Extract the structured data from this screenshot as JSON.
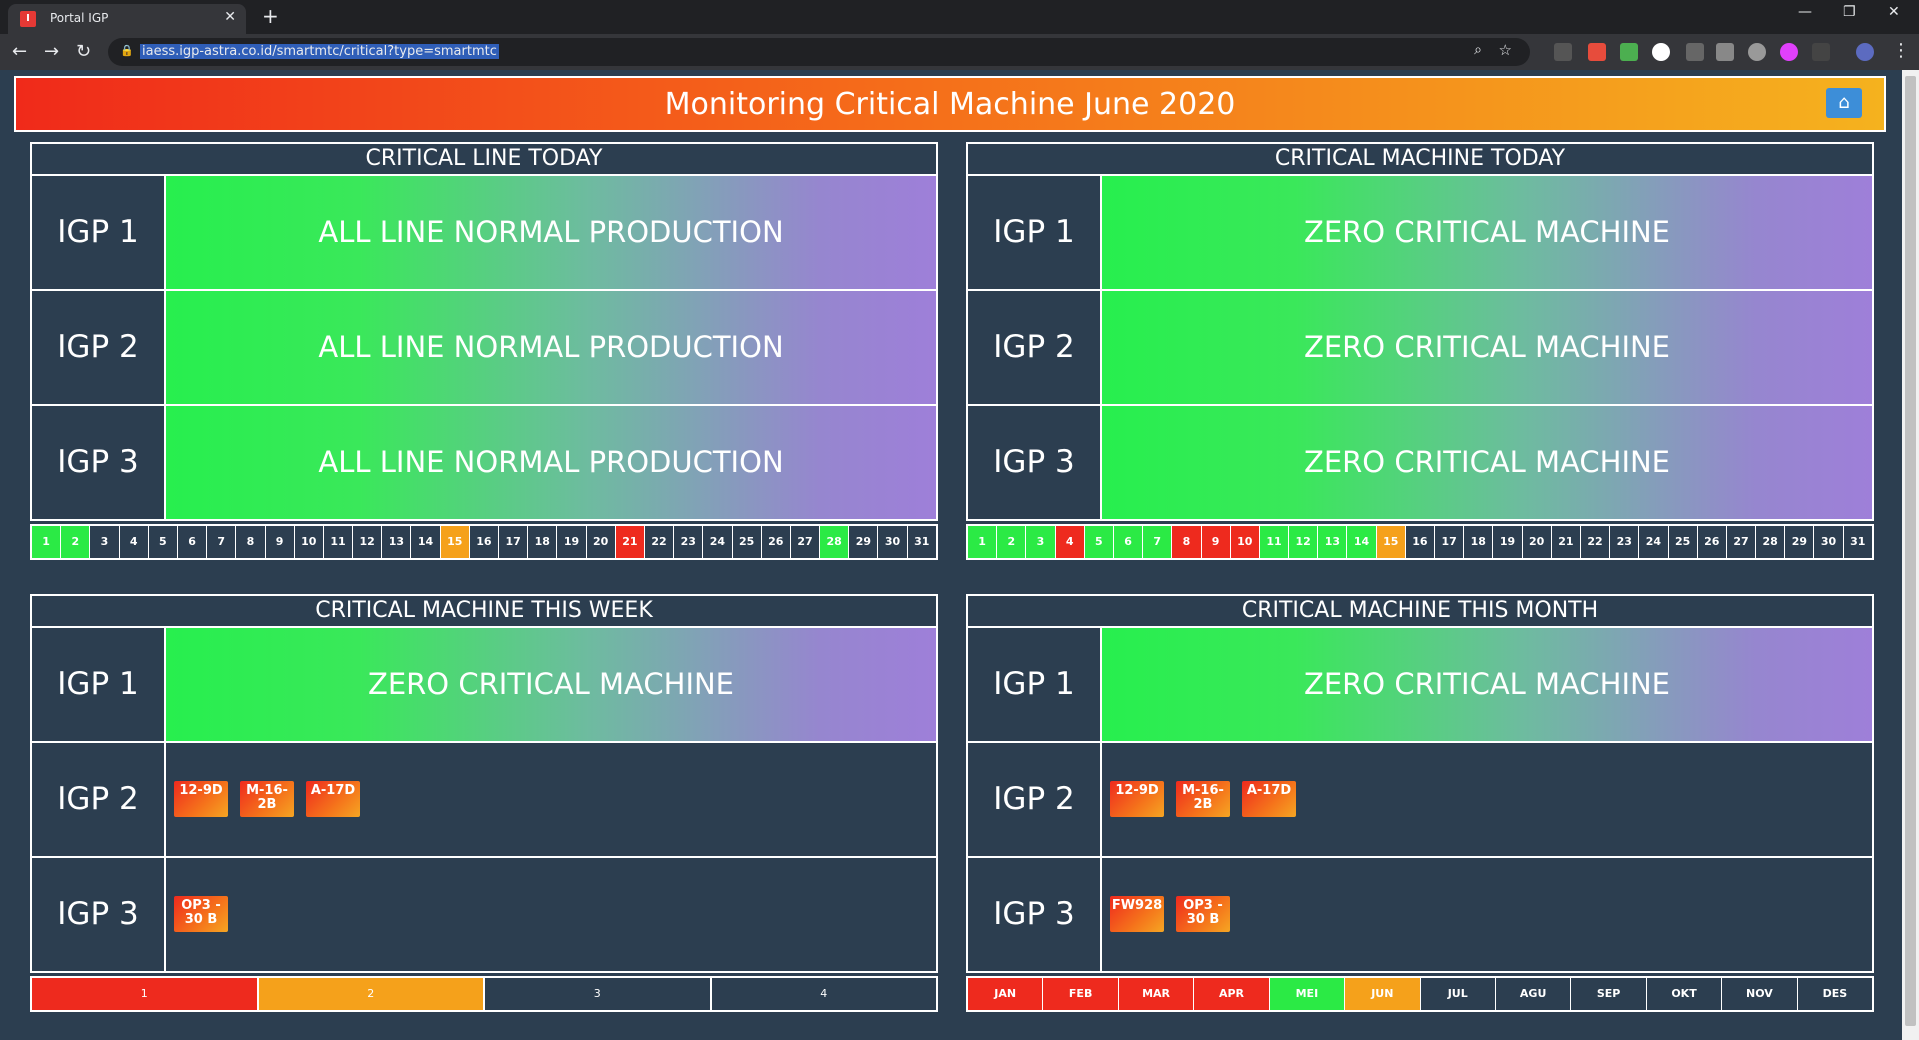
{
  "browser": {
    "tab_title": "Portal IGP",
    "url": "iaess.igp-astra.co.id/smartmtc/critical?type=smartmtc"
  },
  "page": {
    "title": "Monitoring Critical Machine June 2020"
  },
  "panels": {
    "line_today": {
      "title": "CRITICAL LINE TODAY",
      "rows": [
        {
          "plant": "IGP 1",
          "status": "ALL LINE NORMAL PRODUCTION"
        },
        {
          "plant": "IGP 2",
          "status": "ALL LINE NORMAL PRODUCTION"
        },
        {
          "plant": "IGP 3",
          "status": "ALL LINE NORMAL PRODUCTION"
        }
      ]
    },
    "machine_today": {
      "title": "CRITICAL MACHINE TODAY",
      "rows": [
        {
          "plant": "IGP 1",
          "status": "ZERO CRITICAL MACHINE"
        },
        {
          "plant": "IGP 2",
          "status": "ZERO CRITICAL MACHINE"
        },
        {
          "plant": "IGP 3",
          "status": "ZERO CRITICAL MACHINE"
        }
      ]
    },
    "machine_week": {
      "title": "CRITICAL MACHINE THIS WEEK",
      "rows": [
        {
          "plant": "IGP 1",
          "status": "ZERO CRITICAL MACHINE",
          "machines": []
        },
        {
          "plant": "IGP 2",
          "status": "",
          "machines": [
            "12-9D",
            "M-16-\n2B",
            "A-17D"
          ]
        },
        {
          "plant": "IGP 3",
          "status": "",
          "machines": [
            "OP3 -\n30 B"
          ]
        }
      ]
    },
    "machine_month": {
      "title": "CRITICAL MACHINE THIS MONTH",
      "rows": [
        {
          "plant": "IGP 1",
          "status": "ZERO CRITICAL MACHINE",
          "machines": []
        },
        {
          "plant": "IGP 2",
          "status": "",
          "machines": [
            "12-9D",
            "M-16-\n2B",
            "A-17D"
          ]
        },
        {
          "plant": "IGP 3",
          "status": "",
          "machines": [
            "FW928",
            "OP3 -\n30 B"
          ]
        }
      ]
    }
  },
  "calendar_line": {
    "days": [
      "1",
      "2",
      "3",
      "4",
      "5",
      "6",
      "7",
      "8",
      "9",
      "10",
      "11",
      "12",
      "13",
      "14",
      "15",
      "16",
      "17",
      "18",
      "19",
      "20",
      "21",
      "22",
      "23",
      "24",
      "25",
      "26",
      "27",
      "28",
      "29",
      "30",
      "31"
    ],
    "status": {
      "1": "green",
      "2": "green",
      "15": "orange",
      "21": "red",
      "28": "green"
    }
  },
  "calendar_machine": {
    "days": [
      "1",
      "2",
      "3",
      "4",
      "5",
      "6",
      "7",
      "8",
      "9",
      "10",
      "11",
      "12",
      "13",
      "14",
      "15",
      "16",
      "17",
      "18",
      "19",
      "20",
      "21",
      "22",
      "23",
      "24",
      "25",
      "26",
      "27",
      "28",
      "29",
      "30",
      "31"
    ],
    "status": {
      "1": "green",
      "2": "green",
      "3": "green",
      "4": "red",
      "5": "green",
      "6": "green",
      "7": "green",
      "8": "red",
      "9": "red",
      "10": "red",
      "11": "green",
      "12": "green",
      "13": "green",
      "14": "green",
      "15": "orange"
    }
  },
  "weeks": {
    "labels": [
      "1",
      "2",
      "3",
      "4"
    ],
    "status": [
      "red",
      "orange",
      "none",
      "none"
    ]
  },
  "months": {
    "labels": [
      "JAN",
      "FEB",
      "MAR",
      "APR",
      "MEI",
      "JUN",
      "JUL",
      "AGU",
      "SEP",
      "OKT",
      "NOV",
      "DES"
    ],
    "status": [
      "red",
      "red",
      "red",
      "red",
      "green",
      "orange",
      "none",
      "none",
      "none",
      "none",
      "none",
      "none"
    ]
  },
  "colors": {
    "green": "#2bea45",
    "red": "#ee2a1e",
    "orange": "#f5a11b",
    "background": "#2c3e50"
  }
}
